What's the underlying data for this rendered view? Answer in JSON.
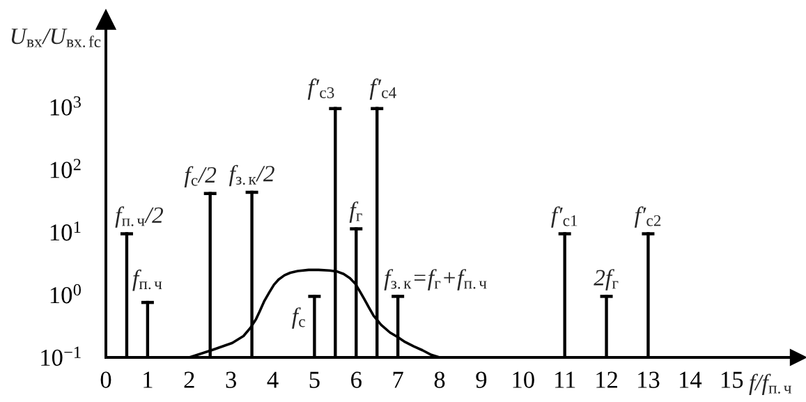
{
  "chart_data": {
    "type": "bar",
    "xlabel": "f/f$_{п.ч}$",
    "ylabel": "U$_{вх}$/U$_{вх.fс}$",
    "log": true,
    "xlim": [
      0,
      16.6
    ],
    "xticks": [
      0,
      1,
      2,
      3,
      4,
      5,
      6,
      7,
      8,
      9,
      10,
      11,
      12,
      13,
      14,
      15
    ],
    "ylim": [
      0.1,
      25000
    ],
    "yticks": [
      {
        "value": 0.1,
        "label": "10$^{−1}$"
      },
      {
        "value": 1,
        "label": "10$^{0}$"
      },
      {
        "value": 10,
        "label": "10$^{1}$"
      },
      {
        "value": 100,
        "label": "10$^{2}$"
      },
      {
        "value": 1000,
        "label": "10$^{3}$"
      }
    ],
    "series": [
      {
        "color": "#000000",
        "x": [
          0.5,
          1,
          2.5,
          3.5,
          5,
          5.5,
          6,
          6.5,
          7,
          11,
          12,
          13
        ],
        "values": [
          10,
          0.8,
          44,
          46,
          1,
          1000,
          12,
          1000,
          1,
          10,
          1,
          10
        ]
      },
      {
        "type": "line",
        "color": "#000000",
        "x": [
          2.0,
          2.53,
          3.03,
          3.3,
          3.47,
          3.6,
          3.69,
          3.8,
          3.92,
          4.03,
          4.14,
          4.28,
          4.42,
          4.6,
          4.86,
          5.1,
          5.36,
          5.55,
          5.7,
          5.85,
          5.98,
          6.1,
          6.2,
          6.31,
          6.42,
          6.6,
          6.81,
          7.0,
          7.15,
          7.38,
          7.59,
          7.8,
          8.0
        ],
        "values": [
          0.1,
          0.13,
          0.17,
          0.22,
          0.3,
          0.41,
          0.55,
          0.8,
          1.1,
          1.45,
          1.75,
          2.05,
          2.25,
          2.4,
          2.5,
          2.5,
          2.45,
          2.35,
          2.15,
          1.85,
          1.5,
          1.1,
          0.84,
          0.62,
          0.46,
          0.33,
          0.25,
          0.21,
          0.18,
          0.15,
          0.13,
          0.11,
          0.1
        ]
      }
    ],
    "annotations": [
      {
        "text": "f$_{п.ч}$/2",
        "x": 0.5,
        "y": 10
      },
      {
        "text": "f$_{п.ч}$",
        "x": 1,
        "y": 0.8
      },
      {
        "text": "f$_{с}$/2",
        "x": 2.5,
        "y": 44
      },
      {
        "text": "f$_{з.к}$/2",
        "x": 3.5,
        "y": 46
      },
      {
        "text": "f$_{с}$",
        "x": 5,
        "y": 1
      },
      {
        "text": "f′$_{с3}$",
        "x": 5.5,
        "y": 1000
      },
      {
        "text": "f$_{г}$",
        "x": 6,
        "y": 12
      },
      {
        "text": "f′$_{с4}$",
        "x": 6.5,
        "y": 1000
      },
      {
        "text": "f$_{з.к}$=f$_{г}$+f$_{п.ч}$",
        "x": 7,
        "y": 1
      },
      {
        "text": "f′$_{с1}$",
        "x": 11,
        "y": 10
      },
      {
        "text": "2f$_{г}$",
        "x": 12,
        "y": 1
      },
      {
        "text": "f′$_{с2}$",
        "x": 13,
        "y": 10
      }
    ]
  }
}
